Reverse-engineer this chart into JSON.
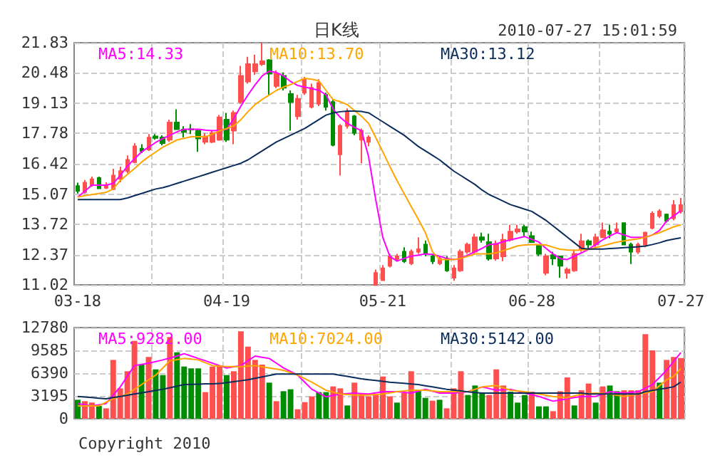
{
  "chart_data": [
    {
      "type": "candlestick",
      "title": "日K线",
      "subtitle": "2010-07-27 15:01:59",
      "grid": true,
      "legend": "top left",
      "marker": "none",
      "ylim": [
        11.02,
        21.83
      ],
      "yticks": [
        11.02,
        12.37,
        13.72,
        15.07,
        16.42,
        17.78,
        19.13,
        20.48,
        21.83
      ],
      "categories": [
        "03-18",
        null,
        null,
        null,
        null,
        null,
        null,
        null,
        null,
        null,
        null,
        null,
        null,
        null,
        null,
        null,
        null,
        null,
        null,
        null,
        null,
        "04-19",
        null,
        null,
        null,
        null,
        null,
        null,
        null,
        null,
        null,
        null,
        null,
        null,
        null,
        null,
        null,
        null,
        null,
        null,
        null,
        null,
        null,
        "05-21",
        null,
        null,
        null,
        null,
        null,
        null,
        null,
        null,
        null,
        null,
        null,
        null,
        null,
        null,
        null,
        null,
        null,
        null,
        null,
        null,
        "06-28",
        null,
        null,
        null,
        null,
        null,
        null,
        null,
        null,
        null,
        null,
        null,
        null,
        null,
        null,
        null,
        null,
        null,
        null,
        null,
        null,
        "07-27"
      ],
      "series": [
        {
          "ohlc": [
            [
              15.43,
              15.58,
              15.1,
              15.22
            ],
            [
              15.16,
              15.7,
              15.1,
              15.58
            ],
            [
              15.47,
              15.85,
              15.4,
              15.73
            ],
            [
              15.79,
              15.85,
              15.3,
              15.33
            ],
            [
              15.35,
              15.6,
              15.3,
              15.45
            ],
            [
              15.3,
              16.2,
              15.25,
              15.9
            ],
            [
              15.75,
              16.3,
              15.6,
              16.1
            ],
            [
              16.1,
              16.8,
              16.0,
              16.6
            ],
            [
              16.5,
              17.35,
              16.45,
              17.2
            ],
            [
              17.1,
              17.3,
              16.9,
              17.0
            ],
            [
              17.06,
              17.75,
              17.0,
              17.59
            ],
            [
              17.65,
              17.75,
              17.5,
              17.58
            ],
            [
              17.6,
              17.7,
              17.25,
              17.35
            ],
            [
              17.5,
              18.4,
              17.4,
              18.27
            ],
            [
              18.27,
              18.86,
              17.95,
              17.97
            ],
            [
              17.95,
              18.1,
              17.6,
              17.85
            ],
            [
              17.97,
              18.2,
              17.75,
              17.95
            ],
            [
              17.9,
              17.95,
              16.96,
              17.55
            ],
            [
              17.4,
              17.8,
              17.3,
              17.65
            ],
            [
              17.4,
              17.9,
              17.35,
              17.8
            ],
            [
              17.5,
              18.6,
              17.45,
              18.5
            ],
            [
              18.4,
              18.7,
              17.4,
              17.5
            ],
            [
              17.9,
              18.8,
              17.3,
              18.7
            ],
            [
              19.18,
              20.8,
              19.1,
              20.35
            ],
            [
              20.1,
              21.2,
              20.0,
              20.88
            ],
            [
              20.55,
              21.3,
              20.4,
              20.88
            ],
            [
              20.88,
              21.83,
              20.8,
              21.0
            ],
            [
              21.05,
              21.1,
              19.5,
              20.45
            ],
            [
              19.9,
              20.6,
              19.8,
              20.45
            ],
            [
              20.35,
              20.5,
              19.7,
              19.82
            ],
            [
              19.54,
              19.7,
              17.9,
              19.18
            ],
            [
              18.55,
              19.5,
              18.4,
              19.33
            ],
            [
              19.6,
              20.3,
              19.5,
              20.18
            ],
            [
              18.97,
              20.0,
              18.9,
              19.82
            ],
            [
              19.1,
              20.2,
              19.0,
              20.03
            ],
            [
              19.5,
              19.6,
              18.8,
              18.97
            ],
            [
              19.18,
              19.3,
              17.2,
              17.27
            ],
            [
              16.85,
              18.2,
              15.9,
              18.12
            ],
            [
              18.12,
              18.9,
              18.0,
              18.75
            ],
            [
              18.55,
              18.6,
              17.7,
              17.8
            ],
            [
              17.5,
              18.0,
              16.45,
              17.9
            ],
            [
              17.4,
              17.7,
              17.2,
              17.6
            ],
            [
              11.02,
              11.7,
              11.02,
              11.55
            ],
            [
              11.23,
              11.9,
              11.23,
              11.76
            ],
            [
              11.87,
              12.4,
              11.8,
              12.29
            ],
            [
              12.18,
              12.4,
              12.1,
              12.29
            ],
            [
              12.5,
              12.7,
              12.0,
              12.08
            ],
            [
              11.98,
              12.6,
              11.9,
              12.5
            ],
            [
              12.5,
              13.14,
              12.4,
              12.61
            ],
            [
              12.82,
              13.0,
              12.3,
              12.4
            ],
            [
              12.29,
              12.4,
              11.95,
              12.08
            ],
            [
              11.98,
              12.3,
              11.9,
              12.18
            ],
            [
              12.18,
              12.3,
              11.6,
              11.66
            ],
            [
              11.34,
              11.9,
              11.2,
              11.76
            ],
            [
              11.66,
              12.6,
              11.6,
              12.5
            ],
            [
              12.5,
              12.9,
              12.4,
              12.82
            ],
            [
              12.5,
              13.3,
              12.4,
              13.14
            ],
            [
              13.14,
              13.35,
              12.9,
              13.03
            ],
            [
              12.93,
              13.3,
              12.1,
              12.19
            ],
            [
              12.2,
              13.0,
              12.1,
              12.85
            ],
            [
              12.29,
              13.3,
              12.08,
              13.03
            ],
            [
              13.03,
              13.7,
              12.95,
              13.4
            ],
            [
              13.4,
              13.7,
              13.3,
              13.5
            ],
            [
              13.6,
              13.7,
              13.2,
              13.4
            ],
            [
              13.2,
              13.4,
              12.9,
              12.93
            ],
            [
              12.76,
              12.8,
              12.3,
              12.4
            ],
            [
              11.55,
              12.4,
              11.45,
              12.29
            ],
            [
              12.35,
              12.5,
              11.9,
              12.2
            ],
            [
              12.29,
              12.3,
              11.34,
              11.87
            ],
            [
              11.55,
              11.8,
              11.3,
              11.7
            ],
            [
              11.66,
              12.6,
              11.6,
              12.4
            ],
            [
              12.61,
              13.3,
              12.5,
              12.97
            ],
            [
              12.97,
              13.05,
              12.6,
              12.82
            ],
            [
              12.82,
              13.3,
              12.7,
              13.14
            ],
            [
              13.14,
              13.8,
              13.1,
              13.46
            ],
            [
              13.4,
              13.7,
              13.1,
              13.3
            ],
            [
              13.4,
              13.8,
              13.3,
              13.5
            ],
            [
              13.78,
              13.8,
              12.8,
              12.82
            ],
            [
              12.82,
              12.9,
              11.95,
              12.5
            ],
            [
              12.5,
              12.9,
              12.4,
              12.82
            ],
            [
              12.82,
              13.4,
              12.7,
              13.35
            ],
            [
              13.56,
              14.3,
              13.5,
              14.2
            ],
            [
              14.1,
              14.4,
              14.0,
              14.3
            ],
            [
              14.16,
              14.2,
              13.8,
              13.88
            ],
            [
              13.99,
              14.8,
              13.9,
              14.58
            ],
            [
              14.3,
              14.9,
              14.2,
              14.58
            ]
          ],
          "colors": [
            "#008c00",
            "#ff5050",
            "#ff5050",
            "#008c00",
            "#ff5050",
            "#ff5050",
            "#ff5050",
            "#ff5050",
            "#ff5050",
            "#008c00",
            "#ff5050",
            "#008c00",
            "#008c00",
            "#ff5050",
            "#008c00",
            "#008c00",
            "#008c00",
            "#008c00",
            "#ff5050",
            "#ff5050",
            "#ff5050",
            "#008c00",
            "#ff5050",
            "#ff5050",
            "#ff5050",
            "#ff5050",
            "#ff5050",
            "#008c00",
            "#ff5050",
            "#008c00",
            "#008c00",
            "#ff5050",
            "#ff5050",
            "#ff5050",
            "#ff5050",
            "#008c00",
            "#008c00",
            "#ff5050",
            "#ff5050",
            "#008c00",
            "#ff5050",
            "#ff5050",
            "#ff5050",
            "#ff5050",
            "#ff5050",
            "#ff5050",
            "#008c00",
            "#ff5050",
            "#ff5050",
            "#008c00",
            "#008c00",
            "#ff5050",
            "#008c00",
            "#ff5050",
            "#ff5050",
            "#ff5050",
            "#ff5050",
            "#008c00",
            "#008c00",
            "#ff5050",
            "#ff5050",
            "#ff5050",
            "#ff5050",
            "#008c00",
            "#008c00",
            "#008c00",
            "#ff5050",
            "#008c00",
            "#008c00",
            "#ff5050",
            "#ff5050",
            "#ff5050",
            "#008c00",
            "#ff5050",
            "#ff5050",
            "#008c00",
            "#ff5050",
            "#008c00",
            "#008c00",
            "#ff5050",
            "#ff5050",
            "#ff5050",
            "#ff5050",
            "#008c00",
            "#ff5050",
            "#ff5050"
          ]
        },
        {
          "type": "line",
          "name": "MA5:14.33",
          "color": "#ff00ff",
          "values": [
            14.94,
            15.2,
            15.47,
            15.47,
            15.47,
            15.55,
            15.9,
            16.32,
            16.65,
            16.96,
            17.17,
            17.38,
            17.55,
            17.7,
            17.85,
            17.97,
            17.97,
            17.97,
            17.93,
            17.9,
            17.92,
            17.97,
            18.44,
            19.0,
            19.5,
            19.95,
            20.35,
            20.56,
            20.5,
            20.35,
            20.1,
            19.92,
            19.85,
            19.78,
            19.71,
            19.5,
            18.86,
            18.5,
            18.23,
            18.05,
            17.9,
            16.74,
            14.83,
            13.14,
            12.29,
            12.08,
            12.2,
            12.3,
            12.35,
            12.4,
            12.38,
            12.3,
            12.2,
            12.15,
            12.2,
            12.35,
            12.5,
            12.65,
            12.82,
            12.85,
            12.95,
            13.03,
            13.1,
            13.18,
            13.05,
            12.93,
            12.65,
            12.4,
            12.19,
            12.15,
            12.3,
            12.45,
            12.61,
            12.82,
            13.03,
            13.2,
            13.35,
            13.25,
            13.14,
            13.14,
            13.14,
            13.25,
            13.45,
            13.88,
            14.1,
            14.33
          ]
        },
        {
          "type": "line",
          "name": "MA10:13.70",
          "color": "#ffa500",
          "values": [
            14.94,
            15.0,
            15.05,
            15.1,
            15.15,
            15.3,
            15.68,
            15.95,
            16.21,
            16.5,
            16.74,
            16.95,
            17.17,
            17.33,
            17.49,
            17.56,
            17.63,
            17.63,
            17.63,
            17.75,
            17.9,
            18.0,
            18.12,
            18.4,
            18.75,
            19.07,
            19.3,
            19.5,
            19.7,
            19.85,
            19.96,
            20.1,
            20.24,
            20.2,
            20.13,
            19.7,
            19.29,
            19.2,
            19.07,
            18.8,
            18.55,
            18.23,
            17.6,
            16.96,
            16.3,
            15.68,
            15.1,
            14.52,
            13.95,
            13.35,
            12.5,
            12.15,
            12.15,
            12.15,
            12.2,
            12.3,
            12.4,
            12.4,
            12.4,
            12.45,
            12.55,
            12.65,
            12.76,
            12.8,
            12.82,
            12.82,
            12.8,
            12.7,
            12.61,
            12.58,
            12.56,
            12.58,
            12.6,
            12.68,
            12.76,
            12.85,
            12.93,
            12.98,
            13.03,
            13.08,
            13.14,
            13.25,
            13.35,
            13.48,
            13.61,
            13.7
          ]
        },
        {
          "type": "line",
          "name": "MA30:13.12",
          "color": "#0a2d5c",
          "values": [
            14.83,
            14.83,
            14.83,
            14.83,
            14.83,
            14.83,
            14.83,
            14.9,
            15.0,
            15.1,
            15.2,
            15.3,
            15.36,
            15.45,
            15.55,
            15.65,
            15.75,
            15.85,
            15.95,
            16.05,
            16.15,
            16.25,
            16.35,
            16.45,
            16.6,
            16.8,
            17.0,
            17.2,
            17.4,
            17.55,
            17.7,
            17.85,
            18.0,
            18.2,
            18.4,
            18.6,
            18.7,
            18.75,
            18.78,
            18.78,
            18.76,
            18.7,
            18.5,
            18.3,
            18.1,
            17.9,
            17.7,
            17.45,
            17.2,
            17.0,
            16.8,
            16.6,
            16.35,
            16.1,
            15.9,
            15.7,
            15.5,
            15.25,
            15.05,
            14.9,
            14.75,
            14.6,
            14.5,
            14.4,
            14.3,
            14.1,
            13.9,
            13.65,
            13.4,
            13.15,
            12.9,
            12.65,
            12.62,
            12.62,
            12.62,
            12.64,
            12.66,
            12.68,
            12.7,
            12.72,
            12.75,
            12.82,
            12.9,
            13.0,
            13.06,
            13.12
          ]
        }
      ]
    },
    {
      "type": "bar",
      "grid": true,
      "legend": "top left",
      "marker": "none",
      "tick_labels": "y",
      "ylim": [
        0,
        12780
      ],
      "yticks": [
        0,
        3195,
        6390,
        9585,
        12780
      ],
      "annotations": [
        "Copyright 2010"
      ],
      "categories": [
        null,
        null,
        null,
        null,
        null,
        null,
        null,
        null,
        null,
        null,
        null,
        null,
        null,
        null,
        null,
        null,
        null,
        null,
        null,
        null,
        null,
        null,
        null,
        null,
        null,
        null,
        null,
        null,
        null,
        null,
        null,
        null,
        null,
        null,
        null,
        null,
        null,
        null,
        null,
        null,
        null,
        null,
        null,
        null,
        null,
        null,
        null,
        null,
        null,
        null,
        null,
        null,
        null,
        null,
        null,
        null,
        null,
        null,
        null,
        null,
        null,
        null,
        null,
        null,
        null,
        null,
        null,
        null,
        null,
        null,
        null,
        null,
        null,
        null,
        null,
        null,
        null,
        null,
        null,
        null,
        null,
        null,
        null,
        null,
        null,
        null
      ],
      "series": [
        {
          "values": [
            2660,
            2460,
            2260,
            1800,
            1460,
            8250,
            4260,
            6660,
            10920,
            7590,
            8650,
            6920,
            6120,
            11450,
            9320,
            7320,
            7060,
            7060,
            3730,
            7320,
            7450,
            6120,
            6660,
            12250,
            10120,
            8250,
            7590,
            5060,
            2460,
            3860,
            4130,
            1330,
            2330,
            3130,
            3730,
            3730,
            4530,
            4260,
            1860,
            5060,
            3590,
            3130,
            3460,
            5920,
            3130,
            2260,
            3590,
            6660,
            3990,
            2930,
            2530,
            2660,
            1460,
            4260,
            6660,
            3330,
            4660,
            3590,
            3330,
            6920,
            4660,
            3790,
            2260,
            3330,
            3790,
            1730,
            1730,
            1060,
            3860,
            5790,
            1860,
            3990,
            4930,
            2260,
            4530,
            4660,
            3860,
            3990,
            3990,
            3990,
            11850,
            9590,
            5060,
            8250,
            8650,
            8520
          ],
          "colors": [
            "#008c00",
            "#ff5050",
            "#ff5050",
            "#008c00",
            "#ff5050",
            "#ff5050",
            "#ff5050",
            "#ff5050",
            "#ff5050",
            "#008c00",
            "#ff5050",
            "#008c00",
            "#008c00",
            "#ff5050",
            "#008c00",
            "#008c00",
            "#008c00",
            "#008c00",
            "#ff5050",
            "#ff5050",
            "#ff5050",
            "#008c00",
            "#ff5050",
            "#ff5050",
            "#ff5050",
            "#ff5050",
            "#ff5050",
            "#008c00",
            "#ff5050",
            "#008c00",
            "#008c00",
            "#ff5050",
            "#ff5050",
            "#ff5050",
            "#008c00",
            "#008c00",
            "#ff5050",
            "#ff5050",
            "#008c00",
            "#ff5050",
            "#ff5050",
            "#ff5050",
            "#ff5050",
            "#ff5050",
            "#ff5050",
            "#008c00",
            "#ff5050",
            "#ff5050",
            "#008c00",
            "#008c00",
            "#ff5050",
            "#008c00",
            "#ff5050",
            "#ff5050",
            "#ff5050",
            "#008c00",
            "#008c00",
            "#008c00",
            "#ff5050",
            "#ff5050",
            "#ff5050",
            "#008c00",
            "#008c00",
            "#008c00",
            "#ff5050",
            "#008c00",
            "#008c00",
            "#ff5050",
            "#ff5050",
            "#ff5050",
            "#008c00",
            "#ff5050",
            "#ff5050",
            "#008c00",
            "#ff5050",
            "#008c00",
            "#008c00",
            "#ff5050",
            "#ff5050",
            "#ff5050",
            "#ff5050",
            "#ff5050",
            "#008c00",
            "#ff5050",
            "#ff5050",
            "#ff5050"
          ]
        },
        {
          "type": "line",
          "name": "MA5:9282.00",
          "color": "#ff00ff",
          "values": [
            2130,
            1960,
            1800,
            1960,
            2130,
            3300,
            4460,
            5960,
            7450,
            7620,
            7790,
            8020,
            8250,
            8520,
            8790,
            9120,
            8790,
            8450,
            8120,
            7790,
            7450,
            7120,
            7290,
            7450,
            8120,
            8790,
            8620,
            8450,
            7790,
            7120,
            6620,
            6120,
            5120,
            4130,
            3600,
            3060,
            3260,
            3460,
            3530,
            3590,
            3530,
            3460,
            3630,
            3790,
            3790,
            3790,
            3690,
            3590,
            3860,
            4130,
            3860,
            3590,
            3590,
            3590,
            3690,
            3790,
            4130,
            4460,
            4230,
            3990,
            4060,
            4130,
            3860,
            3590,
            3360,
            3130,
            2800,
            2460,
            2630,
            2800,
            2960,
            3130,
            3130,
            3130,
            3460,
            3790,
            3690,
            3590,
            3690,
            3790,
            4290,
            4790,
            5790,
            6790,
            8030,
            9282
          ]
        },
        {
          "type": "line",
          "name": "MA10:7024.00",
          "color": "#ffa500",
          "values": [
            1800,
            1800,
            1800,
            1800,
            2300,
            2800,
            3130,
            3460,
            4130,
            4790,
            5460,
            6120,
            7120,
            8120,
            8290,
            8450,
            8350,
            8250,
            7850,
            7450,
            7390,
            7320,
            7320,
            7320,
            7390,
            7450,
            7290,
            7120,
            6960,
            6790,
            6460,
            6120,
            5620,
            5120,
            4560,
            3990,
            3730,
            3460,
            3400,
            3330,
            3330,
            3330,
            3400,
            3460,
            3630,
            3790,
            3890,
            3990,
            3990,
            3990,
            3890,
            3790,
            3790,
            3790,
            3790,
            3790,
            4130,
            4460,
            4560,
            4660,
            4330,
            3990,
            3890,
            3790,
            3630,
            3460,
            3300,
            3130,
            3030,
            2930,
            3200,
            3460,
            3530,
            3590,
            3530,
            3460,
            3300,
            3130,
            3300,
            3460,
            3630,
            3790,
            4630,
            5460,
            5960,
            7024
          ]
        },
        {
          "type": "line",
          "name": "MA30:5142.00",
          "color": "#0a2d5c",
          "values": [
            3130,
            3050,
            2970,
            2880,
            2800,
            2970,
            3130,
            3300,
            3460,
            3630,
            3800,
            3960,
            4130,
            4350,
            4570,
            4790,
            4820,
            4850,
            4880,
            4900,
            4930,
            5060,
            5190,
            5330,
            5460,
            5660,
            5860,
            6060,
            6260,
            6260,
            6260,
            6260,
            6260,
            6260,
            6260,
            6260,
            6260,
            6090,
            5930,
            5760,
            5590,
            5470,
            5360,
            5240,
            5120,
            5040,
            4960,
            4870,
            4790,
            4620,
            4460,
            4290,
            4130,
            4010,
            3900,
            3780,
            3660,
            3590,
            3590,
            3590,
            3590,
            3590,
            3590,
            3590,
            3590,
            3590,
            3590,
            3590,
            3590,
            3590,
            3590,
            3590,
            3460,
            3460,
            3460,
            3460,
            3460,
            3460,
            3460,
            3460,
            3790,
            3960,
            4130,
            4300,
            4480,
            5142
          ]
        }
      ]
    }
  ]
}
